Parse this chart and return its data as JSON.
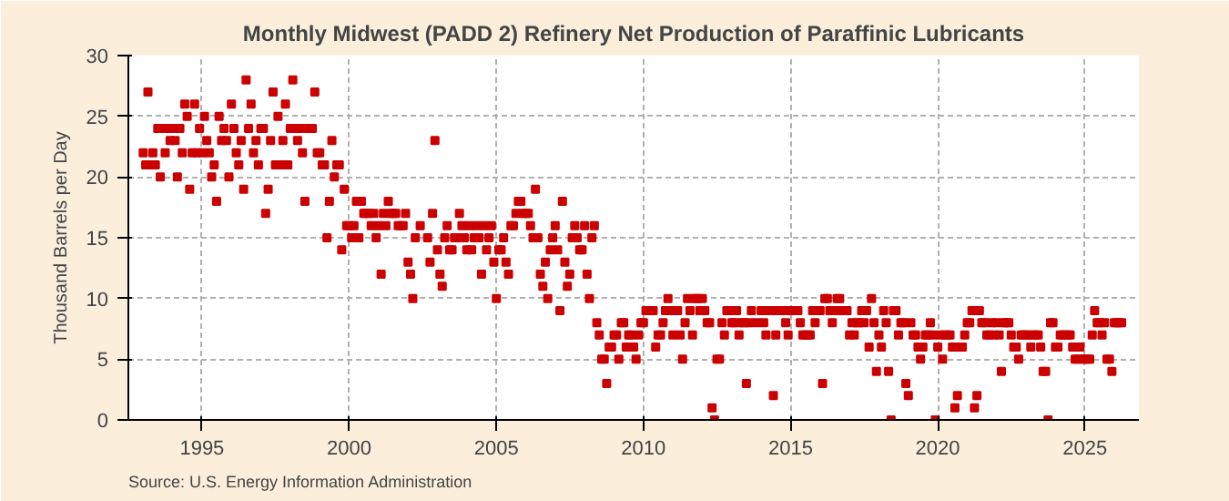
{
  "chart_data": {
    "type": "scatter",
    "title": "Monthly Midwest (PADD 2) Refinery Net Production of Paraffinic Lubricants",
    "ylabel": "Thousand Barrels per Day",
    "annotations": [
      "Source: U.S. Energy Information Administration"
    ],
    "xlim": [
      "1992-07",
      "2026-11"
    ],
    "xticks": [
      {
        "value": "1995-01",
        "label": "1995"
      },
      {
        "value": "2000-01",
        "label": "2000"
      },
      {
        "value": "2005-01",
        "label": "2005"
      },
      {
        "value": "2010-01",
        "label": "2010"
      },
      {
        "value": "2015-01",
        "label": "2015"
      },
      {
        "value": "2020-01",
        "label": "2020"
      },
      {
        "value": "2025-01",
        "label": "2025"
      }
    ],
    "ylim": [
      0,
      30
    ],
    "yticks": [
      0,
      5,
      10,
      15,
      20,
      25,
      30
    ],
    "grid": true,
    "marker": "square",
    "series": [
      {
        "color": "#cc0000",
        "x": [
          "1993-01",
          "1993-02",
          "1993-03",
          "1993-04",
          "1993-05",
          "1993-06",
          "1993-07",
          "1993-08",
          "1993-09",
          "1993-10",
          "1993-11",
          "1993-12",
          "1994-01",
          "1994-02",
          "1994-03",
          "1994-04",
          "1994-05",
          "1994-06",
          "1994-07",
          "1994-08",
          "1994-09",
          "1994-10",
          "1994-11",
          "1994-12",
          "1995-01",
          "1995-02",
          "1995-03",
          "1995-04",
          "1995-05",
          "1995-06",
          "1995-07",
          "1995-08",
          "1995-09",
          "1995-10",
          "1995-11",
          "1995-12",
          "1996-01",
          "1996-02",
          "1996-03",
          "1996-04",
          "1996-05",
          "1996-06",
          "1996-07",
          "1996-08",
          "1996-09",
          "1996-10",
          "1996-11",
          "1996-12",
          "1997-01",
          "1997-02",
          "1997-03",
          "1997-04",
          "1997-05",
          "1997-06",
          "1997-07",
          "1997-08",
          "1997-09",
          "1997-10",
          "1997-11",
          "1997-12",
          "1998-01",
          "1998-02",
          "1998-03",
          "1998-04",
          "1998-05",
          "1998-06",
          "1998-07",
          "1998-08",
          "1998-09",
          "1998-10",
          "1998-11",
          "1998-12",
          "1999-01",
          "1999-02",
          "1999-03",
          "1999-04",
          "1999-05",
          "1999-06",
          "1999-07",
          "1999-08",
          "1999-09",
          "1999-10",
          "1999-11",
          "1999-12",
          "2000-01",
          "2000-02",
          "2000-03",
          "2000-04",
          "2000-05",
          "2000-06",
          "2000-07",
          "2000-08",
          "2000-09",
          "2000-10",
          "2000-11",
          "2000-12",
          "2001-01",
          "2001-02",
          "2001-03",
          "2001-04",
          "2001-05",
          "2001-06",
          "2001-07",
          "2001-08",
          "2001-09",
          "2001-10",
          "2001-11",
          "2001-12",
          "2002-01",
          "2002-02",
          "2002-03",
          "2002-04",
          "2002-05",
          "2002-06",
          "2002-07",
          "2002-08",
          "2002-09",
          "2002-10",
          "2002-11",
          "2002-12",
          "2003-01",
          "2003-02",
          "2003-03",
          "2003-04",
          "2003-05",
          "2003-06",
          "2003-07",
          "2003-08",
          "2003-09",
          "2003-10",
          "2003-11",
          "2003-12",
          "2004-01",
          "2004-02",
          "2004-03",
          "2004-04",
          "2004-05",
          "2004-06",
          "2004-07",
          "2004-08",
          "2004-09",
          "2004-10",
          "2004-11",
          "2004-12",
          "2005-01",
          "2005-02",
          "2005-03",
          "2005-04",
          "2005-05",
          "2005-06",
          "2005-07",
          "2005-08",
          "2005-09",
          "2005-10",
          "2005-11",
          "2005-12",
          "2006-01",
          "2006-02",
          "2006-03",
          "2006-04",
          "2006-05",
          "2006-06",
          "2006-07",
          "2006-08",
          "2006-09",
          "2006-10",
          "2006-11",
          "2006-12",
          "2007-01",
          "2007-02",
          "2007-03",
          "2007-04",
          "2007-05",
          "2007-06",
          "2007-07",
          "2007-08",
          "2007-09",
          "2007-10",
          "2007-11",
          "2007-12",
          "2008-01",
          "2008-02",
          "2008-03",
          "2008-04",
          "2008-05",
          "2008-06",
          "2008-07",
          "2008-08",
          "2008-09",
          "2008-10",
          "2008-11",
          "2008-12",
          "2009-01",
          "2009-02",
          "2009-03",
          "2009-04",
          "2009-05",
          "2009-06",
          "2009-07",
          "2009-08",
          "2009-09",
          "2009-10",
          "2009-11",
          "2009-12",
          "2010-01",
          "2010-02",
          "2010-03",
          "2010-04",
          "2010-05",
          "2010-06",
          "2010-07",
          "2010-08",
          "2010-09",
          "2010-10",
          "2010-11",
          "2010-12",
          "2011-01",
          "2011-02",
          "2011-03",
          "2011-04",
          "2011-05",
          "2011-06",
          "2011-07",
          "2011-08",
          "2011-09",
          "2011-10",
          "2011-11",
          "2011-12",
          "2012-01",
          "2012-02",
          "2012-03",
          "2012-04",
          "2012-05",
          "2012-06",
          "2012-07",
          "2012-08",
          "2012-09",
          "2012-10",
          "2012-11",
          "2012-12",
          "2013-01",
          "2013-02",
          "2013-03",
          "2013-04",
          "2013-05",
          "2013-06",
          "2013-07",
          "2013-08",
          "2013-09",
          "2013-10",
          "2013-11",
          "2013-12",
          "2014-01",
          "2014-02",
          "2014-03",
          "2014-04",
          "2014-05",
          "2014-06",
          "2014-07",
          "2014-08",
          "2014-09",
          "2014-10",
          "2014-11",
          "2014-12",
          "2015-01",
          "2015-02",
          "2015-03",
          "2015-04",
          "2015-05",
          "2015-06",
          "2015-07",
          "2015-08",
          "2015-09",
          "2015-10",
          "2015-11",
          "2015-12",
          "2016-01",
          "2016-02",
          "2016-03",
          "2016-04",
          "2016-05",
          "2016-06",
          "2016-07",
          "2016-08",
          "2016-09",
          "2016-10",
          "2016-11",
          "2016-12",
          "2017-01",
          "2017-02",
          "2017-03",
          "2017-04",
          "2017-05",
          "2017-06",
          "2017-07",
          "2017-08",
          "2017-09",
          "2017-10",
          "2017-11",
          "2017-12",
          "2018-01",
          "2018-02",
          "2018-03",
          "2018-04",
          "2018-05",
          "2018-06",
          "2018-07",
          "2018-08",
          "2018-09",
          "2018-10",
          "2018-11",
          "2018-12",
          "2019-01",
          "2019-02",
          "2019-03",
          "2019-04",
          "2019-05",
          "2019-06",
          "2019-07",
          "2019-08",
          "2019-09",
          "2019-10",
          "2019-11",
          "2019-12",
          "2020-01",
          "2020-02",
          "2020-03",
          "2020-04",
          "2020-05",
          "2020-06",
          "2020-07",
          "2020-08",
          "2020-09",
          "2020-10",
          "2020-11",
          "2020-12",
          "2021-01",
          "2021-02",
          "2021-03",
          "2021-04",
          "2021-05",
          "2021-06",
          "2021-07",
          "2021-08",
          "2021-09",
          "2021-10",
          "2021-11",
          "2021-12",
          "2022-01",
          "2022-02",
          "2022-03",
          "2022-04",
          "2022-05",
          "2022-06",
          "2022-07",
          "2022-08",
          "2022-09",
          "2022-10",
          "2022-11",
          "2022-12",
          "2023-01",
          "2023-02",
          "2023-03",
          "2023-04",
          "2023-05",
          "2023-06",
          "2023-07",
          "2023-08",
          "2023-09",
          "2023-10",
          "2023-11",
          "2023-12",
          "2024-01",
          "2024-02",
          "2024-03",
          "2024-04",
          "2024-05",
          "2024-06",
          "2024-07",
          "2024-08",
          "2024-09",
          "2024-10",
          "2024-11",
          "2024-12",
          "2025-01",
          "2025-02",
          "2025-03",
          "2025-04",
          "2025-05",
          "2025-06",
          "2025-07",
          "2025-08",
          "2025-09",
          "2025-10",
          "2025-11",
          "2025-12",
          "2026-01",
          "2026-02",
          "2026-03",
          "2026-04"
        ],
        "values": [
          22,
          21,
          27,
          21,
          22,
          21,
          24,
          20,
          24,
          22,
          24,
          23,
          24,
          23,
          20,
          24,
          22,
          26,
          25,
          19,
          22,
          26,
          22,
          24,
          22,
          25,
          23,
          22,
          20,
          21,
          18,
          25,
          23,
          24,
          23,
          20,
          26,
          24,
          22,
          21,
          23,
          19,
          28,
          24,
          26,
          22,
          23,
          21,
          24,
          24,
          17,
          19,
          23,
          27,
          21,
          25,
          21,
          23,
          26,
          21,
          24,
          28,
          24,
          23,
          24,
          22,
          18,
          24,
          null,
          24,
          27,
          22,
          22,
          21,
          21,
          15,
          18,
          23,
          20,
          21,
          21,
          14,
          19,
          16,
          16,
          15,
          16,
          18,
          15,
          18,
          17,
          17,
          17,
          16,
          17,
          15,
          16,
          12,
          17,
          16,
          18,
          17,
          17,
          17,
          16,
          16,
          16,
          17,
          13,
          12,
          10,
          15,
          null,
          16,
          null,
          null,
          15,
          13,
          17,
          23,
          14,
          12,
          11,
          15,
          16,
          14,
          14,
          15,
          15,
          17,
          16,
          15,
          14,
          16,
          14,
          15,
          16,
          15,
          12,
          16,
          14,
          15,
          16,
          13,
          10,
          14,
          14,
          15,
          13,
          12,
          16,
          16,
          17,
          18,
          18,
          17,
          17,
          17,
          16,
          15,
          19,
          15,
          12,
          11,
          13,
          10,
          14,
          15,
          16,
          14,
          9,
          18,
          13,
          11,
          12,
          15,
          16,
          15,
          14,
          14,
          16,
          12,
          10,
          15,
          16,
          8,
          7,
          5,
          5,
          3,
          6,
          6,
          7,
          7,
          5,
          8,
          8,
          6,
          7,
          7,
          6,
          5,
          7,
          8,
          8,
          9,
          null,
          null,
          9,
          6,
          7,
          7,
          8,
          9,
          10,
          9,
          7,
          null,
          9,
          7,
          5,
          8,
          10,
          9,
          7,
          10,
          10,
          9,
          10,
          9,
          8,
          8,
          1,
          0,
          5,
          5,
          8,
          7,
          9,
          9,
          8,
          8,
          9,
          7,
          8,
          8,
          3,
          8,
          9,
          null,
          8,
          null,
          9,
          8,
          7,
          9,
          9,
          2,
          7,
          9,
          null,
          9,
          8,
          7,
          9,
          null,
          null,
          9,
          8,
          7,
          7,
          7,
          7,
          9,
          8,
          null,
          9,
          3,
          10,
          10,
          9,
          8,
          9,
          10,
          10,
          9,
          null,
          9,
          7,
          8,
          7,
          8,
          8,
          9,
          8,
          9,
          6,
          10,
          8,
          4,
          7,
          6,
          9,
          8,
          4,
          0,
          9,
          9,
          7,
          8,
          8,
          3,
          2,
          8,
          7,
          7,
          6,
          5,
          6,
          7,
          7,
          8,
          7,
          0,
          6,
          7,
          5,
          7,
          7,
          7,
          6,
          1,
          2,
          6,
          6,
          7,
          8,
          8,
          9,
          1,
          2,
          9,
          8,
          8,
          7,
          7,
          8,
          7,
          8,
          7,
          4,
          8,
          8,
          8,
          7,
          6,
          6,
          5,
          7,
          7,
          7,
          7,
          6,
          7,
          7,
          7,
          6,
          4,
          4,
          0,
          8,
          8,
          6,
          6,
          7,
          7,
          7,
          7,
          7,
          6,
          5,
          5,
          6,
          5,
          5,
          5,
          5,
          7,
          9,
          8,
          8,
          7,
          8,
          5,
          5,
          4,
          8,
          8,
          8,
          8
        ]
      }
    ]
  }
}
